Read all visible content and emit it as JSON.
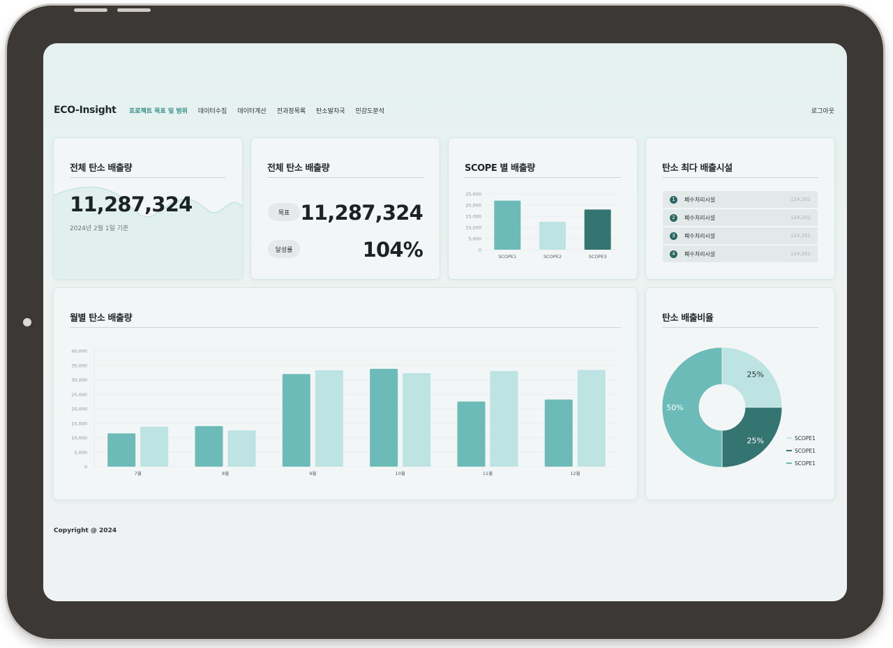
{
  "app": {
    "logo": "ECO-Insight",
    "logout": "로그아웃",
    "menu": [
      {
        "label": "프로젝트 목표 및 범위",
        "active": true
      },
      {
        "label": "데이터수집",
        "active": false
      },
      {
        "label": "데이터계산",
        "active": false
      },
      {
        "label": "전과정목록",
        "active": false
      },
      {
        "label": "탄소발자국",
        "active": false
      },
      {
        "label": "민감도분석",
        "active": false
      }
    ]
  },
  "total_card": {
    "title": "전체 탄소 배출량",
    "value": "11,287,324",
    "date": "2024년 2월 1일 기준"
  },
  "target_card": {
    "title": "전체 탄소 배출량",
    "target_label": "목표",
    "target_value": "11,287,324",
    "rate_label": "달성률",
    "rate_value": "104%"
  },
  "scope_card": {
    "title": "SCOPE 별 배출량"
  },
  "facility_card": {
    "title": "탄소 최다 배출시설",
    "items": [
      {
        "rank": "1",
        "name": "폐수처리시설",
        "value": "124,201"
      },
      {
        "rank": "2",
        "name": "폐수처리시설",
        "value": "124,201"
      },
      {
        "rank": "3",
        "name": "폐수처리시설",
        "value": "124,201"
      },
      {
        "rank": "4",
        "name": "폐수처리시설",
        "value": "124,201"
      }
    ]
  },
  "monthly_card": {
    "title": "월별 탄소 배출량"
  },
  "ratio_card": {
    "title": "탄소 배출비율"
  },
  "footer": {
    "copyright": "Copyright @ 2024"
  },
  "colors": {
    "accent": "#2f8b86",
    "teal_mid": "#6dbbb8",
    "teal_light": "#bde3e3",
    "teal_dark": "#347471"
  },
  "chart_data": [
    {
      "id": "scope",
      "type": "bar",
      "categories": [
        "SCOPE1",
        "SCOPE2",
        "SCOPE3"
      ],
      "values": [
        22000,
        12500,
        18000
      ],
      "colors": [
        "#6dbbb8",
        "#bde3e3",
        "#347471"
      ],
      "ylim": [
        0,
        25000
      ],
      "yticks": [
        "25,000",
        "20,000",
        "15,000",
        "10,000",
        "5,000",
        "0"
      ],
      "ytick_values": [
        25000,
        20000,
        15000,
        10000,
        5000,
        0
      ],
      "grid": true
    },
    {
      "id": "monthly",
      "type": "bar",
      "categories": [
        "7월",
        "8월",
        "9월",
        "10월",
        "11월",
        "12월"
      ],
      "series": [
        {
          "values": [
            11500,
            14000,
            32000,
            33800,
            22500,
            23200
          ],
          "color": "#6dbbb8"
        },
        {
          "values": [
            13800,
            12500,
            33300,
            32300,
            33000,
            33400
          ],
          "color": "#bde3e3"
        }
      ],
      "ylim": [
        0,
        40000
      ],
      "yticks": [
        "40,000",
        "35,000",
        "30,000",
        "25,000",
        "20,000",
        "15,000",
        "10,000",
        "5,000",
        "0"
      ],
      "ytick_values": [
        40000,
        35000,
        30000,
        25000,
        20000,
        15000,
        10000,
        5000,
        0
      ],
      "grid": true
    },
    {
      "id": "ratio",
      "type": "pie",
      "labels": [
        "SCOPE1",
        "SCOPE1",
        "SCOPE1"
      ],
      "values": [
        25,
        25,
        50
      ],
      "value_labels": [
        "25%",
        "25%",
        "50%"
      ],
      "colors": [
        "#bde3e3",
        "#347471",
        "#6dbbb8"
      ],
      "legend": "bottom-right",
      "donut": true
    }
  ]
}
